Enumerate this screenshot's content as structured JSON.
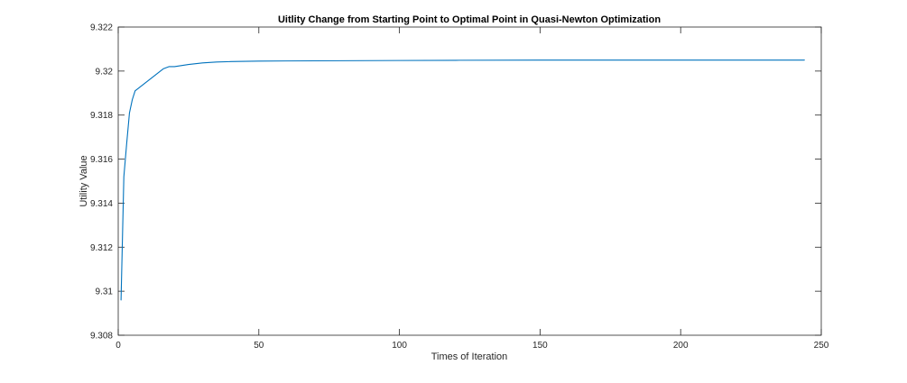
{
  "chart_data": {
    "type": "line",
    "title": "Uitlity Change from Starting Point to Optimal Point in Quasi-Newton Optimization",
    "xlabel": "Times of Iteration",
    "ylabel": "Utility Value",
    "xlim": [
      0,
      250
    ],
    "ylim": [
      9.308,
      9.322
    ],
    "xticks": [
      0,
      50,
      100,
      150,
      200,
      250
    ],
    "xtick_labels": [
      "0",
      "50",
      "100",
      "150",
      "200",
      "250"
    ],
    "yticks": [
      9.308,
      9.31,
      9.312,
      9.314,
      9.316,
      9.318,
      9.32,
      9.322
    ],
    "ytick_labels": [
      "9.308",
      "9.31",
      "9.312",
      "9.314",
      "9.316",
      "9.318",
      "9.32",
      "9.322"
    ],
    "grid": false,
    "line_color": "#0072BD",
    "series": [
      {
        "name": "",
        "x": [
          1,
          2,
          3,
          4,
          5,
          6,
          8,
          10,
          12,
          14,
          16,
          18,
          20,
          25,
          30,
          35,
          40,
          50,
          60,
          80,
          100,
          120,
          150,
          200,
          244
        ],
        "y": [
          9.3096,
          9.3152,
          9.3167,
          9.3181,
          9.3187,
          9.3191,
          9.3193,
          9.3195,
          9.3197,
          9.3199,
          9.3201,
          9.3202,
          9.3202,
          9.3203,
          9.32037,
          9.32041,
          9.32043,
          9.32045,
          9.32046,
          9.32047,
          9.32048,
          9.32049,
          9.3205,
          9.3205,
          9.3205
        ]
      }
    ]
  }
}
